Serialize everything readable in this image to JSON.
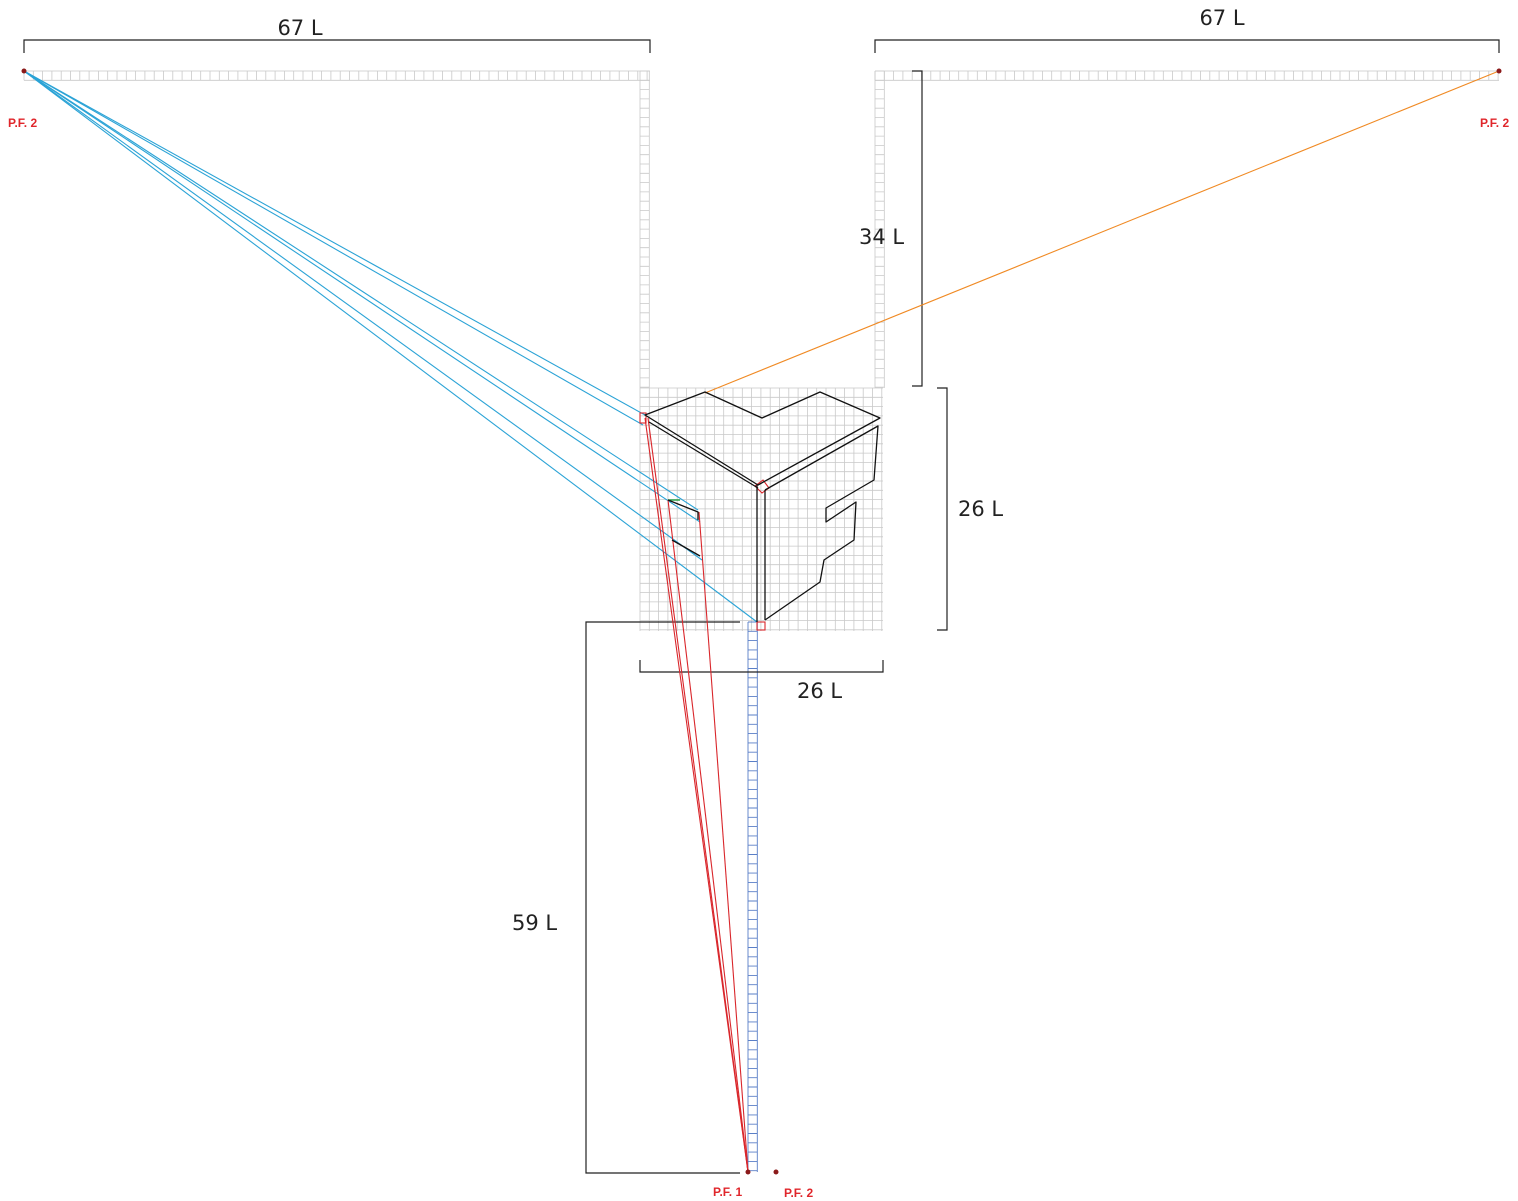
{
  "dimensions": {
    "top_left": "67 L",
    "top_right": "67 L",
    "right_upper": "34 L",
    "right_lower": "26 L",
    "bottom_width": "26 L",
    "left_vertical": "59 L"
  },
  "vanishing_points": {
    "left": "P.F. 2",
    "right": "P.F. 2",
    "bottom_main": "P.F. 1",
    "bottom_secondary": "P.F. 2"
  },
  "colors": {
    "grid": "#c9c9c9",
    "blue_guides": "#2ba3d6",
    "red_guides": "#d9262b",
    "orange_guide": "#f08a24",
    "vertical_ruler": "#5a7fc7",
    "outline": "#111111",
    "vp_label": "#e0262b",
    "vp_dot": "#8b1a1a"
  }
}
